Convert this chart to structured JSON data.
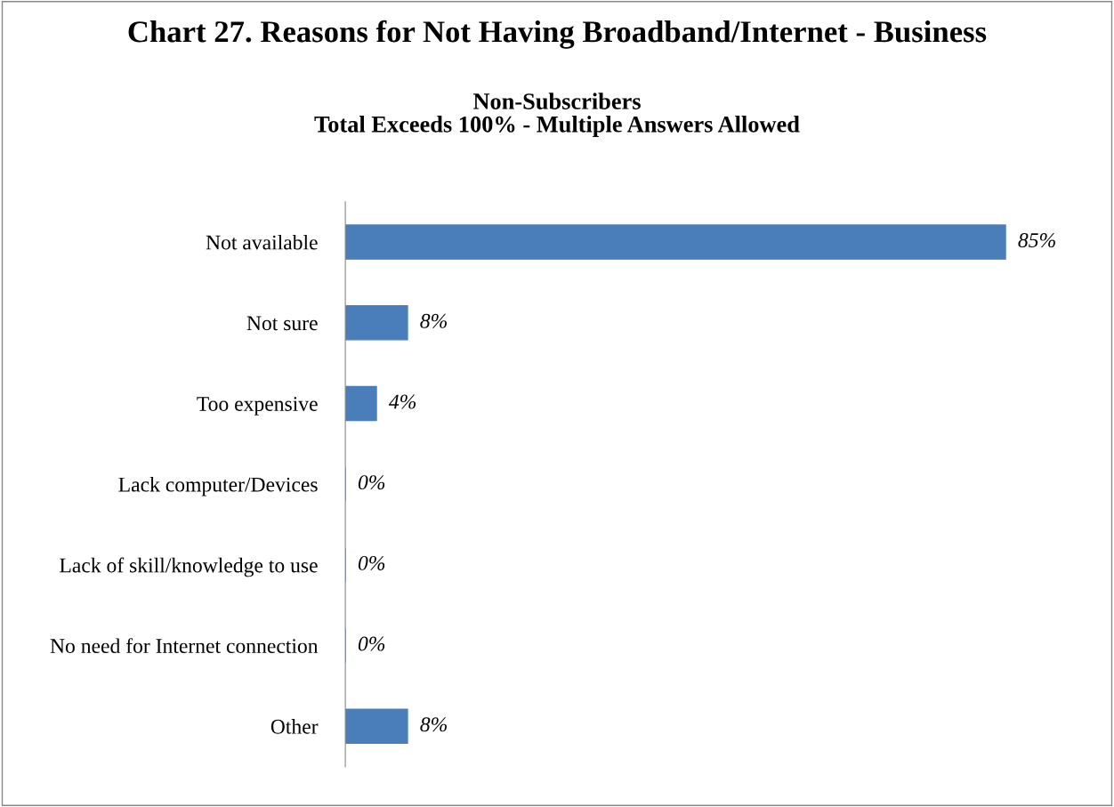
{
  "chart_data": {
    "type": "bar",
    "orientation": "horizontal",
    "title": "Chart 27. Reasons for Not Having Broadband/Internet - Business",
    "subtitle": "Non-Subscribers\nTotal Exceeds 100% - Multiple Answers Allowed",
    "categories": [
      "Not available",
      "Not sure",
      "Too expensive",
      "Lack computer/Devices",
      "Lack of skill/knowledge to use",
      "No need for Internet connection",
      "Other"
    ],
    "values": [
      85,
      8,
      4,
      0,
      0,
      0,
      8
    ],
    "value_labels": [
      "85%",
      "8%",
      "4%",
      "0%",
      "0%",
      "0%",
      "8%"
    ],
    "color": "#4a7ebb",
    "grid": false,
    "legend": false
  }
}
